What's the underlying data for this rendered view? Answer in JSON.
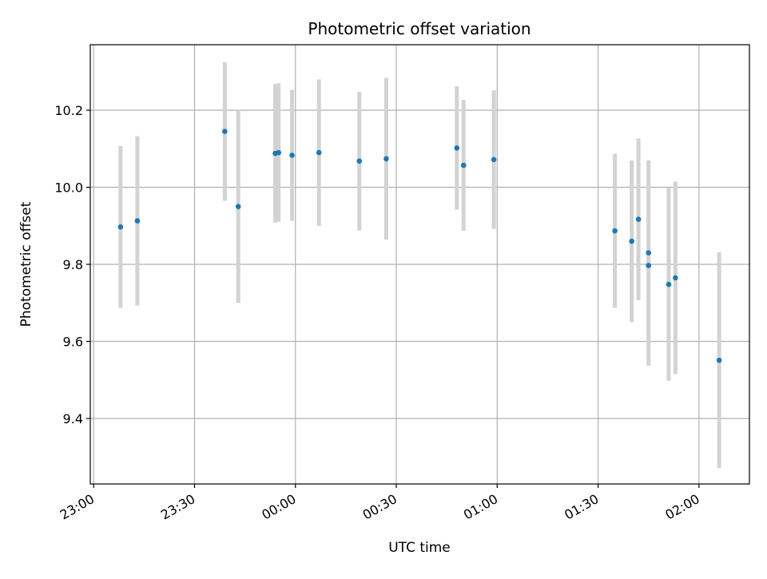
{
  "chart_data": {
    "type": "scatter",
    "title": "Photometric offset variation",
    "xlabel": "UTC time",
    "ylabel": "Photometric offset",
    "x_axis_kind": "time (HH:MM)",
    "xlim": [
      "22:59",
      "02:15"
    ],
    "ylim": [
      9.23,
      10.37
    ],
    "x_ticks": [
      "23:00",
      "23:30",
      "00:00",
      "00:30",
      "01:00",
      "01:30",
      "02:00"
    ],
    "y_ticks": [
      "9.4",
      "9.6",
      "9.8",
      "10.0",
      "10.2"
    ],
    "grid": true,
    "colors": {
      "points": "#1f77b4",
      "errorbars": "#d3d3d3",
      "grid": "#b0b0b0"
    },
    "points": [
      {
        "time": "23:08",
        "y": 9.897,
        "yerr": 0.21
      },
      {
        "time": "23:13",
        "y": 9.913,
        "yerr": 0.22
      },
      {
        "time": "23:39",
        "y": 10.145,
        "yerr": 0.18
      },
      {
        "time": "23:43",
        "y": 9.95,
        "yerr": 0.25
      },
      {
        "time": "23:54",
        "y": 10.088,
        "yerr": 0.18
      },
      {
        "time": "23:55",
        "y": 10.09,
        "yerr": 0.18
      },
      {
        "time": "23:59",
        "y": 10.083,
        "yerr": 0.17
      },
      {
        "time": "00:07",
        "y": 10.09,
        "yerr": 0.19
      },
      {
        "time": "00:19",
        "y": 10.068,
        "yerr": 0.18
      },
      {
        "time": "00:27",
        "y": 10.074,
        "yerr": 0.21
      },
      {
        "time": "00:48",
        "y": 10.102,
        "yerr": 0.16
      },
      {
        "time": "00:50",
        "y": 10.057,
        "yerr": 0.17
      },
      {
        "time": "00:59",
        "y": 10.072,
        "yerr": 0.18
      },
      {
        "time": "01:35",
        "y": 9.887,
        "yerr": 0.2
      },
      {
        "time": "01:40",
        "y": 9.86,
        "yerr": 0.21
      },
      {
        "time": "01:42",
        "y": 9.917,
        "yerr": 0.21
      },
      {
        "time": "01:45",
        "y": 9.83,
        "yerr": 0.24
      },
      {
        "time": "01:45",
        "y": 9.797,
        "yerr": 0.26
      },
      {
        "time": "01:51",
        "y": 9.748,
        "yerr": 0.25
      },
      {
        "time": "01:53",
        "y": 9.765,
        "yerr": 0.25
      },
      {
        "time": "02:06",
        "y": 9.551,
        "yerr": 0.28
      }
    ]
  }
}
